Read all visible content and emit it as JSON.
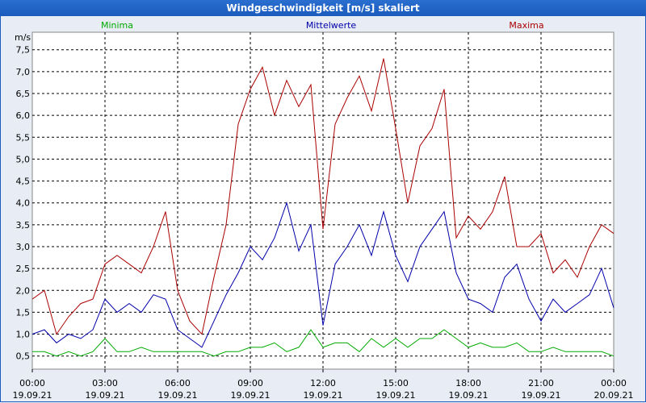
{
  "chart_data": {
    "type": "line",
    "title": "Windgeschwindigkeit [m/s] skaliert",
    "ylabel": "m/s",
    "ylim": [
      0.2,
      7.9
    ],
    "yticks": [
      "0,5",
      "1,0",
      "1,5",
      "2,0",
      "2,5",
      "3,0",
      "3,5",
      "4,0",
      "4,5",
      "5,0",
      "5,5",
      "6,0",
      "6,5",
      "7,0",
      "7,5"
    ],
    "xlim": [
      0,
      24
    ],
    "xticks": [
      {
        "time": "00:00",
        "date": "19.09.21"
      },
      {
        "time": "03:00",
        "date": "19.09.21"
      },
      {
        "time": "06:00",
        "date": "19.09.21"
      },
      {
        "time": "09:00",
        "date": "19.09.21"
      },
      {
        "time": "12:00",
        "date": "19.09.21"
      },
      {
        "time": "15:00",
        "date": "19.09.21"
      },
      {
        "time": "18:00",
        "date": "19.09.21"
      },
      {
        "time": "21:00",
        "date": "19.09.21"
      },
      {
        "time": "00:00",
        "date": "20.09.21"
      }
    ],
    "grid": true,
    "series": [
      {
        "name": "Minima",
        "color": "#00aa00",
        "x": [
          0,
          0.5,
          1,
          1.5,
          2,
          2.5,
          3,
          3.5,
          4,
          4.5,
          5,
          5.5,
          6,
          6.5,
          7,
          7.5,
          8,
          8.5,
          9,
          9.5,
          10,
          10.5,
          11,
          11.5,
          12,
          12.5,
          13,
          13.5,
          14,
          14.5,
          15,
          15.5,
          16,
          16.5,
          17,
          17.5,
          18,
          18.5,
          19,
          19.5,
          20,
          20.5,
          21,
          21.5,
          22,
          22.5,
          23,
          23.5,
          24
        ],
        "values": [
          0.6,
          0.6,
          0.5,
          0.6,
          0.5,
          0.6,
          0.9,
          0.6,
          0.6,
          0.7,
          0.6,
          0.6,
          0.6,
          0.6,
          0.6,
          0.5,
          0.6,
          0.6,
          0.7,
          0.7,
          0.8,
          0.6,
          0.7,
          1.1,
          0.7,
          0.8,
          0.8,
          0.6,
          0.9,
          0.7,
          0.9,
          0.7,
          0.9,
          0.9,
          1.1,
          0.9,
          0.7,
          0.8,
          0.7,
          0.7,
          0.8,
          0.6,
          0.6,
          0.7,
          0.6,
          0.6,
          0.6,
          0.6,
          0.5
        ]
      },
      {
        "name": "Mittelwerte",
        "color": "#0000aa",
        "x": [
          0,
          0.5,
          1,
          1.5,
          2,
          2.5,
          3,
          3.5,
          4,
          4.5,
          5,
          5.5,
          6,
          6.5,
          7,
          7.5,
          8,
          8.5,
          9,
          9.5,
          10,
          10.5,
          11,
          11.5,
          12,
          12.5,
          13,
          13.5,
          14,
          14.5,
          15,
          15.5,
          16,
          16.5,
          17,
          17.5,
          18,
          18.5,
          19,
          19.5,
          20,
          20.5,
          21,
          21.5,
          22,
          22.5,
          23,
          23.5,
          24
        ],
        "values": [
          1.0,
          1.1,
          0.8,
          1.0,
          0.9,
          1.1,
          1.8,
          1.5,
          1.7,
          1.5,
          1.9,
          1.8,
          1.1,
          0.9,
          0.7,
          1.3,
          1.9,
          2.4,
          3.0,
          2.7,
          3.2,
          4.0,
          2.9,
          3.5,
          1.2,
          2.6,
          3.0,
          3.5,
          2.8,
          3.8,
          2.8,
          2.2,
          3.0,
          3.4,
          3.8,
          2.4,
          1.8,
          1.7,
          1.5,
          2.3,
          2.6,
          1.8,
          1.3,
          1.8,
          1.5,
          1.7,
          1.9,
          2.5,
          1.6
        ]
      },
      {
        "name": "Maxima",
        "color": "#aa0000",
        "x": [
          0,
          0.5,
          1,
          1.5,
          2,
          2.5,
          3,
          3.5,
          4,
          4.5,
          5,
          5.5,
          6,
          6.5,
          7,
          7.5,
          8,
          8.5,
          9,
          9.5,
          10,
          10.5,
          11,
          11.5,
          12,
          12.5,
          13,
          13.5,
          14,
          14.5,
          15,
          15.5,
          16,
          16.5,
          17,
          17.5,
          18,
          18.5,
          19,
          19.5,
          20,
          20.5,
          21,
          21.5,
          22,
          22.5,
          23,
          23.5,
          24
        ],
        "values": [
          1.8,
          2.0,
          1.0,
          1.4,
          1.7,
          1.8,
          2.6,
          2.8,
          2.6,
          2.4,
          3.0,
          3.8,
          2.0,
          1.3,
          1.0,
          2.3,
          3.5,
          5.8,
          6.6,
          7.1,
          6.0,
          6.8,
          6.2,
          6.7,
          3.4,
          5.8,
          6.4,
          6.9,
          6.1,
          7.3,
          5.7,
          4.0,
          5.3,
          5.7,
          6.6,
          3.2,
          3.7,
          3.4,
          3.8,
          4.6,
          3.0,
          3.0,
          3.3,
          2.4,
          2.7,
          2.3,
          3.0,
          3.5,
          3.3
        ]
      }
    ]
  }
}
